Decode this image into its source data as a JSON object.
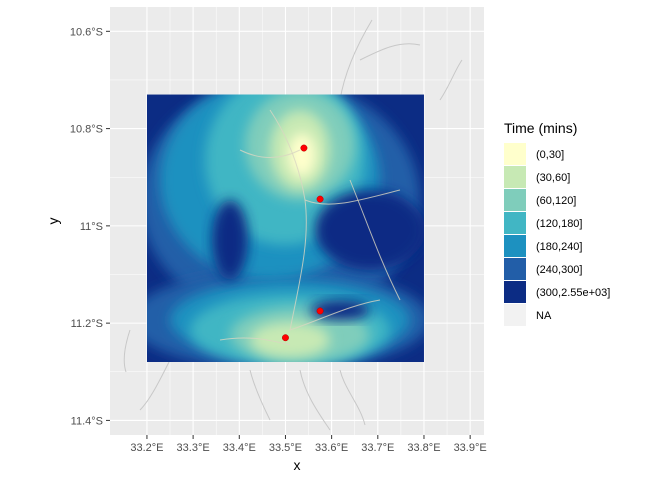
{
  "chart_data": {
    "type": "heatmap",
    "title": "",
    "xlabel": "x",
    "ylabel": "y",
    "xlim": [
      33.12,
      33.93
    ],
    "ylim": [
      -11.43,
      -10.55
    ],
    "x_ticks": [
      {
        "value": 33.2,
        "label": "33.2°E"
      },
      {
        "value": 33.3,
        "label": "33.3°E"
      },
      {
        "value": 33.4,
        "label": "33.4°E"
      },
      {
        "value": 33.5,
        "label": "33.5°E"
      },
      {
        "value": 33.6,
        "label": "33.6°E"
      },
      {
        "value": 33.7,
        "label": "33.7°E"
      },
      {
        "value": 33.8,
        "label": "33.8°E"
      },
      {
        "value": 33.9,
        "label": "33.9°E"
      }
    ],
    "y_ticks": [
      {
        "value": -10.6,
        "label": "10.6°S"
      },
      {
        "value": -10.8,
        "label": "10.8°S"
      },
      {
        "value": -11.0,
        "label": "11°S"
      },
      {
        "value": -11.2,
        "label": "11.2°S"
      },
      {
        "value": -11.4,
        "label": "11.4°S"
      }
    ],
    "raster_extent": {
      "x": [
        33.2,
        33.8
      ],
      "y": [
        -11.28,
        -10.73
      ]
    },
    "grid": true,
    "legend": {
      "title": "Time (mins)",
      "placement": "right",
      "items": [
        {
          "label": "(0,30]",
          "color": "#ffffcc"
        },
        {
          "label": "(30,60]",
          "color": "#c7e9b4"
        },
        {
          "label": "(60,120]",
          "color": "#7fcdbb"
        },
        {
          "label": "(120,180]",
          "color": "#41b6c4"
        },
        {
          "label": "(180,240]",
          "color": "#1d91c0"
        },
        {
          "label": "(240,300]",
          "color": "#225ea8"
        },
        {
          "label": "(300,2.55e+03]",
          "color": "#0c2c84"
        },
        {
          "label": "NA",
          "color": "#f2f2f2"
        }
      ]
    },
    "points": [
      {
        "x": 33.54,
        "y": -10.84
      },
      {
        "x": 33.575,
        "y": -10.945
      },
      {
        "x": 33.575,
        "y": -11.175
      },
      {
        "x": 33.5,
        "y": -11.23
      }
    ],
    "point_color": "#ff0000",
    "panel_background": "#ebebeb",
    "gridline_color": "#ffffff"
  }
}
